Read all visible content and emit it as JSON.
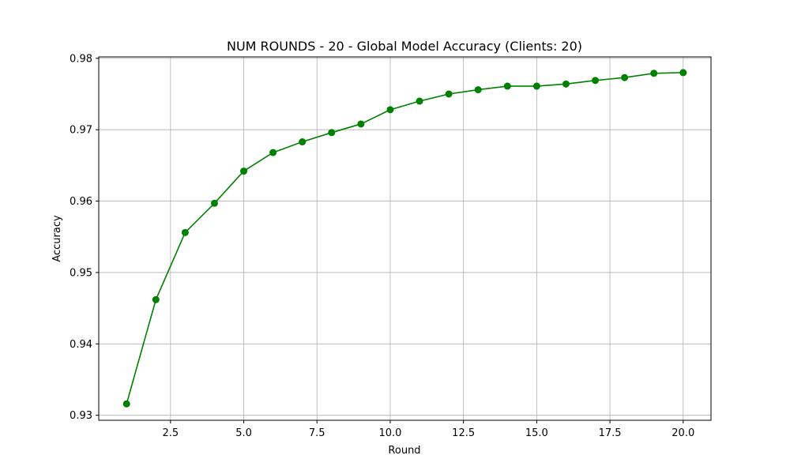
{
  "chart_data": {
    "type": "line",
    "title": "NUM ROUNDS - 20 - Global Model Accuracy (Clients: 20)",
    "xlabel": "Round",
    "ylabel": "Accuracy",
    "xlim": [
      0.05,
      20.95
    ],
    "ylim": [
      0.9293,
      0.9802
    ],
    "xticks": [
      2.5,
      5.0,
      7.5,
      10.0,
      12.5,
      15.0,
      17.5,
      20.0
    ],
    "xtick_labels": [
      "2.5",
      "5.0",
      "7.5",
      "10.0",
      "12.5",
      "15.0",
      "17.5",
      "20.0"
    ],
    "yticks": [
      0.93,
      0.94,
      0.95,
      0.96,
      0.97,
      0.98
    ],
    "ytick_labels": [
      "0.93",
      "0.94",
      "0.95",
      "0.96",
      "0.97",
      "0.98"
    ],
    "grid": true,
    "series": [
      {
        "color": "#008000",
        "marker": "circle",
        "x": [
          1,
          2,
          3,
          4,
          5,
          6,
          7,
          8,
          9,
          10,
          11,
          12,
          13,
          14,
          15,
          16,
          17,
          18,
          19,
          20
        ],
        "y": [
          0.9316,
          0.9462,
          0.9556,
          0.9597,
          0.9642,
          0.9668,
          0.9683,
          0.9696,
          0.9708,
          0.9728,
          0.974,
          0.975,
          0.9756,
          0.9761,
          0.9761,
          0.9764,
          0.9769,
          0.9773,
          0.9779,
          0.978
        ]
      }
    ]
  }
}
